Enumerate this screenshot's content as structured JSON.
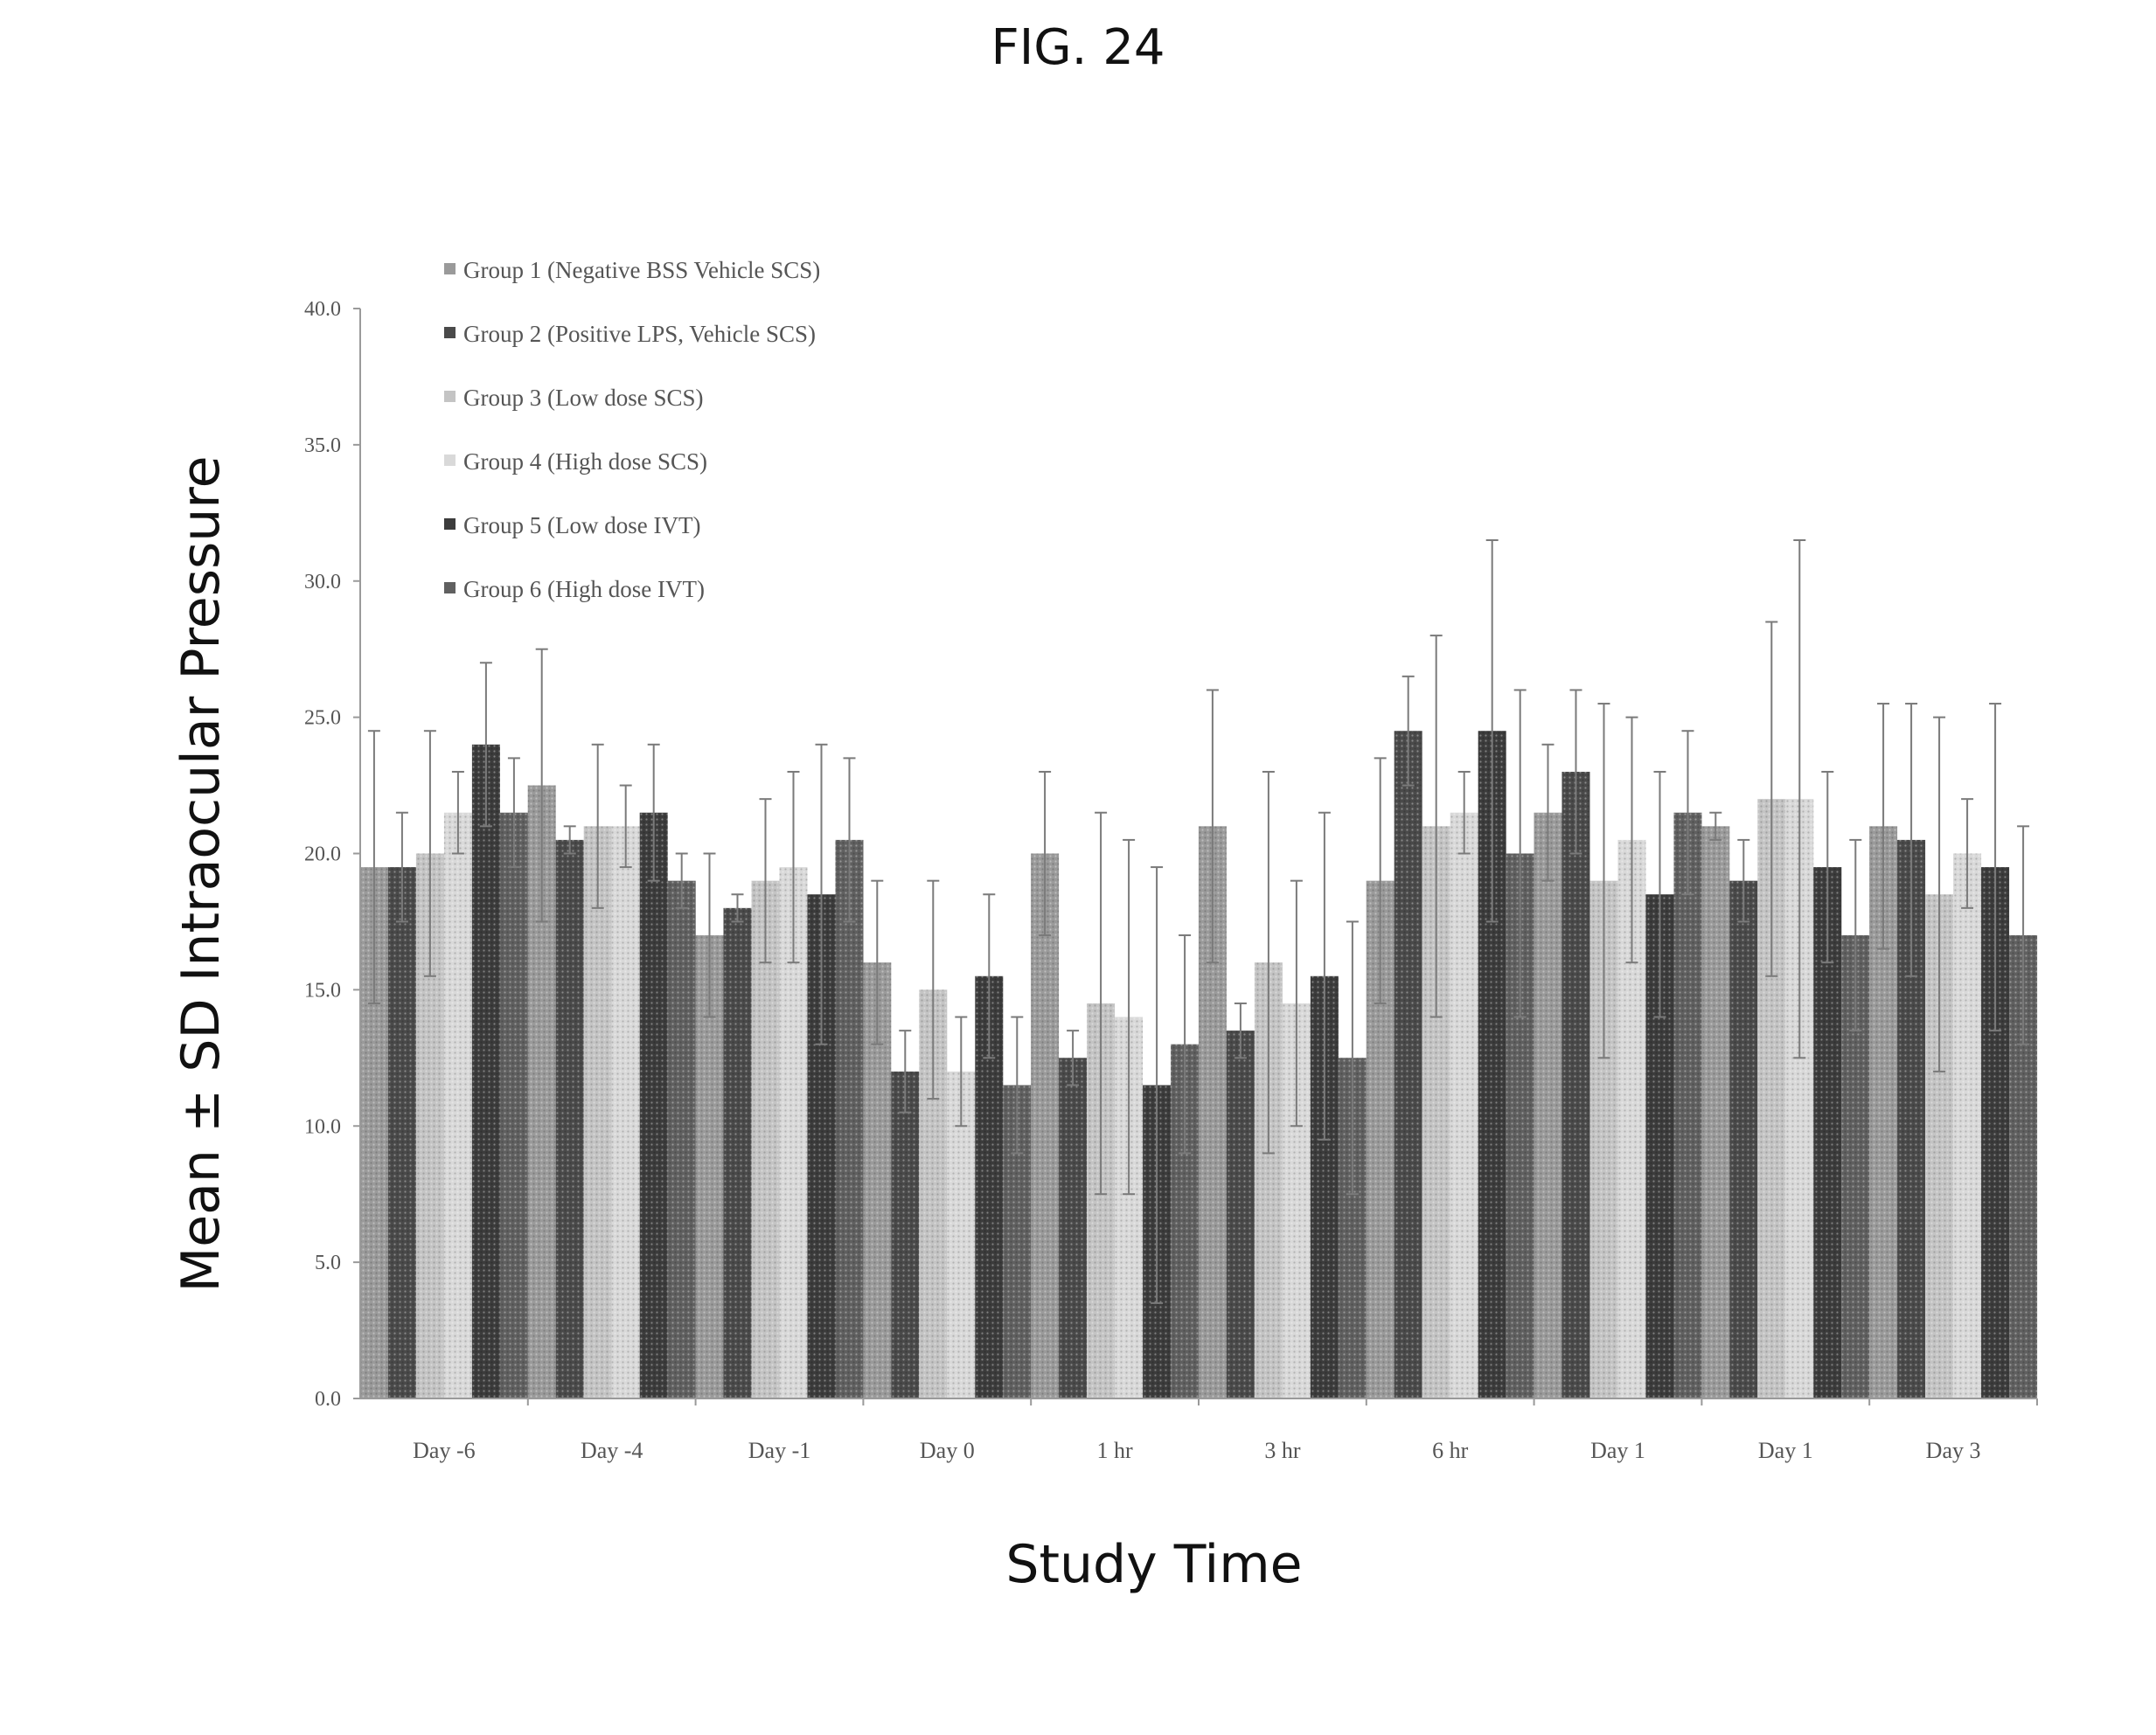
{
  "figure_label": "FIG. 24",
  "chart_data": {
    "type": "bar",
    "title": "",
    "xlabel": "Study Time",
    "ylabel": "Mean ± SD Intraocular Pressure",
    "ylim": [
      0,
      40
    ],
    "yticks": [
      "0.0",
      "5.0",
      "10.0",
      "15.0",
      "20.0",
      "25.0",
      "30.0",
      "35.0",
      "40.0"
    ],
    "grid": false,
    "legend_position": "top-left",
    "error_bars": "SD",
    "categories": [
      "Day -6",
      "Day -4",
      "Day -1",
      "Day 0",
      "1 hr",
      "3 hr",
      "6 hr",
      "Day 1",
      "Day 1",
      "Day 3"
    ],
    "series": [
      {
        "name": "Group 1 (Negative BSS Vehicle SCS)",
        "color": "#9a9a9a",
        "values": [
          19.5,
          22.5,
          17.0,
          16.0,
          20.0,
          21.0,
          19.0,
          21.5,
          21.0,
          21.0
        ],
        "sd": [
          5.0,
          5.0,
          3.0,
          3.0,
          3.0,
          5.0,
          4.5,
          2.5,
          0.5,
          4.5
        ]
      },
      {
        "name": "Group 2 (Positive LPS, Vehicle SCS)",
        "color": "#4a4a4a",
        "values": [
          19.5,
          20.5,
          18.0,
          12.0,
          12.5,
          13.5,
          24.5,
          23.0,
          19.0,
          20.5
        ],
        "sd": [
          2.0,
          0.5,
          0.5,
          1.5,
          1.0,
          1.0,
          2.0,
          3.0,
          1.5,
          5.0
        ]
      },
      {
        "name": "Group 3 (Low dose SCS)",
        "color": "#c4c4c4",
        "values": [
          20.0,
          21.0,
          19.0,
          15.0,
          14.5,
          16.0,
          21.0,
          19.0,
          22.0,
          18.5
        ],
        "sd": [
          4.5,
          3.0,
          3.0,
          4.0,
          7.0,
          7.0,
          7.0,
          6.5,
          6.5,
          6.5
        ]
      },
      {
        "name": "Group 4 (High dose SCS)",
        "color": "#d9d9d9",
        "values": [
          21.5,
          21.0,
          19.5,
          12.0,
          14.0,
          14.5,
          21.5,
          20.5,
          22.0,
          20.0
        ],
        "sd": [
          1.5,
          1.5,
          3.5,
          2.0,
          6.5,
          4.5,
          1.5,
          4.5,
          9.5,
          2.0
        ]
      },
      {
        "name": "Group 5 (Low dose IVT)",
        "color": "#3c3c3c",
        "values": [
          24.0,
          21.5,
          18.5,
          15.5,
          11.5,
          15.5,
          24.5,
          18.5,
          19.5,
          19.5
        ],
        "sd": [
          3.0,
          2.5,
          5.5,
          3.0,
          8.0,
          6.0,
          7.0,
          4.5,
          3.5,
          6.0
        ]
      },
      {
        "name": "Group 6 (High dose IVT)",
        "color": "#606060",
        "values": [
          21.5,
          19.0,
          20.5,
          11.5,
          13.0,
          12.5,
          20.0,
          21.5,
          17.0,
          17.0
        ],
        "sd": [
          2.0,
          1.0,
          3.0,
          2.5,
          4.0,
          5.0,
          6.0,
          3.0,
          3.5,
          4.0
        ]
      }
    ]
  }
}
